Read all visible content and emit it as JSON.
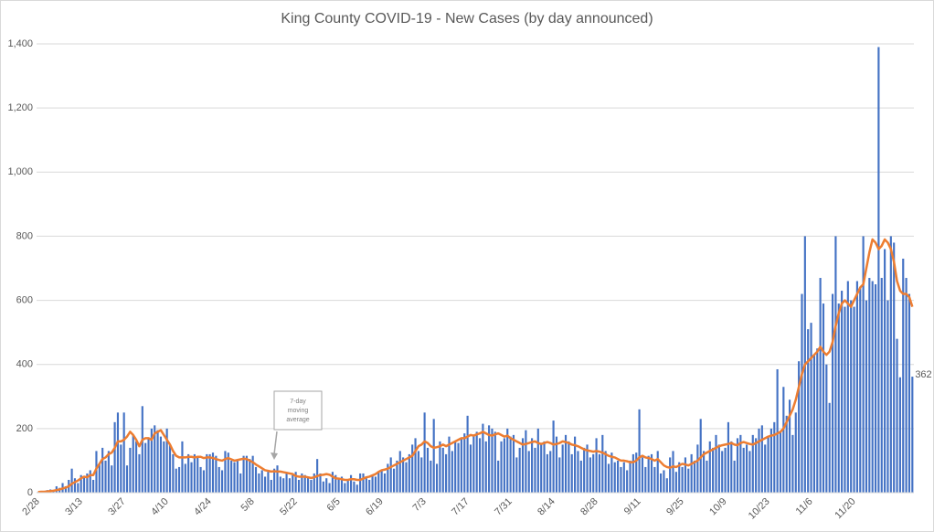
{
  "chart_data": {
    "type": "bar",
    "title": "King County COVID-19 - New Cases (by day announced)",
    "categories": [
      "2/28",
      null,
      null,
      null,
      null,
      null,
      null,
      null,
      null,
      null,
      null,
      null,
      null,
      null,
      "3/13",
      null,
      null,
      null,
      null,
      null,
      null,
      null,
      null,
      null,
      null,
      null,
      null,
      null,
      "3/27",
      null,
      null,
      null,
      null,
      null,
      null,
      null,
      null,
      null,
      null,
      null,
      null,
      null,
      "4/10",
      null,
      null,
      null,
      null,
      null,
      null,
      null,
      null,
      null,
      null,
      null,
      null,
      null,
      "4/24",
      null,
      null,
      null,
      null,
      null,
      null,
      null,
      null,
      null,
      null,
      null,
      null,
      null,
      "5/8",
      null,
      null,
      null,
      null,
      null,
      null,
      null,
      null,
      null,
      null,
      null,
      null,
      null,
      "5/22",
      null,
      null,
      null,
      null,
      null,
      null,
      null,
      null,
      null,
      null,
      null,
      null,
      null,
      "6/5",
      null,
      null,
      null,
      null,
      null,
      null,
      null,
      null,
      null,
      null,
      null,
      null,
      null,
      "6/19",
      null,
      null,
      null,
      null,
      null,
      null,
      null,
      null,
      null,
      null,
      null,
      null,
      null,
      "7/3",
      null,
      null,
      null,
      null,
      null,
      null,
      null,
      null,
      null,
      null,
      null,
      null,
      null,
      "7/17",
      null,
      null,
      null,
      null,
      null,
      null,
      null,
      null,
      null,
      null,
      null,
      null,
      null,
      "7/31",
      null,
      null,
      null,
      null,
      null,
      null,
      null,
      null,
      null,
      null,
      null,
      null,
      null,
      "8/14",
      null,
      null,
      null,
      null,
      null,
      null,
      null,
      null,
      null,
      null,
      null,
      null,
      null,
      "8/28",
      null,
      null,
      null,
      null,
      null,
      null,
      null,
      null,
      null,
      null,
      null,
      null,
      null,
      "9/11",
      null,
      null,
      null,
      null,
      null,
      null,
      null,
      null,
      null,
      null,
      null,
      null,
      null,
      "9/25",
      null,
      null,
      null,
      null,
      null,
      null,
      null,
      null,
      null,
      null,
      null,
      null,
      null,
      "10/9",
      null,
      null,
      null,
      null,
      null,
      null,
      null,
      null,
      null,
      null,
      null,
      null,
      null,
      "10/23",
      null,
      null,
      null,
      null,
      null,
      null,
      null,
      null,
      null,
      null,
      null,
      null,
      null,
      "11/6",
      null,
      null,
      null,
      null,
      null,
      null,
      null,
      null,
      null,
      null,
      null,
      null,
      null,
      "11/20",
      null,
      null,
      null,
      null,
      null,
      null,
      null,
      null,
      null,
      null,
      null,
      null,
      null,
      null,
      null,
      null,
      null,
      null,
      null
    ],
    "series": [
      {
        "color": "#4472c4",
        "values": [
          2,
          5,
          3,
          8,
          10,
          8,
          20,
          15,
          30,
          20,
          40,
          75,
          45,
          30,
          55,
          50,
          60,
          70,
          40,
          130,
          90,
          140,
          100,
          130,
          85,
          220,
          250,
          150,
          250,
          85,
          140,
          180,
          160,
          120,
          270,
          155,
          170,
          200,
          210,
          195,
          175,
          160,
          200,
          150,
          120,
          75,
          80,
          160,
          90,
          120,
          95,
          120,
          110,
          80,
          70,
          120,
          120,
          125,
          115,
          80,
          70,
          130,
          125,
          100,
          95,
          100,
          60,
          115,
          115,
          105,
          115,
          80,
          60,
          70,
          50,
          65,
          40,
          75,
          85,
          50,
          45,
          60,
          45,
          55,
          65,
          40,
          60,
          55,
          50,
          40,
          60,
          105,
          60,
          35,
          45,
          30,
          65,
          55,
          45,
          50,
          30,
          40,
          55,
          35,
          25,
          60,
          60,
          45,
          40,
          55,
          50,
          65,
          70,
          60,
          90,
          110,
          75,
          100,
          130,
          110,
          95,
          120,
          150,
          170,
          130,
          110,
          250,
          140,
          100,
          230,
          90,
          160,
          140,
          120,
          175,
          130,
          160,
          155,
          170,
          185,
          240,
          150,
          180,
          190,
          170,
          215,
          160,
          210,
          200,
          190,
          100,
          160,
          170,
          200,
          175,
          180,
          110,
          140,
          170,
          195,
          130,
          170,
          140,
          200,
          150,
          160,
          120,
          130,
          225,
          175,
          110,
          150,
          180,
          160,
          120,
          175,
          130,
          100,
          140,
          150,
          110,
          120,
          170,
          120,
          180,
          130,
          90,
          125,
          95,
          100,
          80,
          95,
          70,
          100,
          120,
          125,
          260,
          110,
          80,
          115,
          120,
          80,
          130,
          60,
          70,
          45,
          110,
          130,
          65,
          95,
          80,
          110,
          75,
          120,
          100,
          150,
          230,
          130,
          100,
          160,
          140,
          180,
          150,
          130,
          140,
          220,
          160,
          100,
          170,
          180,
          140,
          150,
          130,
          180,
          170,
          200,
          210,
          150,
          175,
          200,
          220,
          385,
          190,
          330,
          240,
          290,
          180,
          250,
          410,
          620,
          800,
          510,
          530,
          430,
          450,
          670,
          590,
          400,
          280,
          620,
          800,
          590,
          630,
          580,
          660,
          600,
          580,
          660,
          640,
          800,
          600,
          670,
          660,
          650,
          1390,
          670,
          760,
          600,
          800,
          780,
          480,
          360,
          730,
          670,
          620,
          362
        ]
      },
      {
        "type": "line",
        "color": "#ed7d31",
        "values": [
          2,
          3,
          3,
          4,
          5,
          6,
          8,
          10,
          13,
          16,
          20,
          28,
          33,
          38,
          45,
          50,
          48,
          55,
          55,
          75,
          90,
          105,
          110,
          120,
          125,
          140,
          160,
          160,
          165,
          175,
          190,
          180,
          165,
          145,
          165,
          170,
          170,
          165,
          185,
          190,
          195,
          180,
          165,
          150,
          130,
          115,
          110,
          110,
          110,
          112,
          112,
          110,
          112,
          112,
          108,
          110,
          110,
          108,
          105,
          102,
          100,
          105,
          108,
          104,
          100,
          102,
          104,
          106,
          105,
          100,
          95,
          88,
          82,
          76,
          70,
          68,
          66,
          67,
          66,
          66,
          64,
          62,
          60,
          58,
          52,
          50,
          50,
          50,
          48,
          46,
          48,
          52,
          55,
          56,
          58,
          56,
          50,
          45,
          44,
          42,
          40,
          40,
          42,
          42,
          40,
          40,
          44,
          48,
          50,
          54,
          58,
          65,
          70,
          72,
          75,
          80,
          85,
          90,
          95,
          100,
          105,
          110,
          115,
          130,
          145,
          150,
          160,
          155,
          145,
          140,
          142,
          145,
          150,
          145,
          150,
          155,
          160,
          165,
          170,
          170,
          175,
          180,
          178,
          182,
          185,
          190,
          185,
          180,
          178,
          182,
          185,
          180,
          175,
          178,
          170,
          165,
          160,
          155,
          150,
          152,
          155,
          158,
          160,
          155,
          152,
          155,
          158,
          155,
          150,
          152,
          155,
          160,
          158,
          155,
          150,
          148,
          145,
          140,
          135,
          132,
          130,
          128,
          130,
          128,
          125,
          120,
          115,
          112,
          110,
          105,
          100,
          100,
          98,
          95,
          95,
          100,
          110,
          115,
          110,
          108,
          105,
          100,
          105,
          95,
          85,
          80,
          78,
          82,
          80,
          85,
          90,
          88,
          85,
          90,
          95,
          100,
          110,
          120,
          125,
          130,
          135,
          140,
          145,
          148,
          150,
          152,
          155,
          150,
          148,
          155,
          158,
          155,
          152,
          150,
          155,
          160,
          165,
          170,
          175,
          178,
          180,
          185,
          190,
          200,
          220,
          240,
          260,
          290,
          330,
          370,
          400,
          410,
          420,
          430,
          440,
          455,
          440,
          430,
          440,
          470,
          520,
          560,
          590,
          600,
          590,
          580,
          600,
          620,
          640,
          650,
          700,
          750,
          790,
          780,
          760,
          770,
          790,
          780,
          760,
          720,
          660,
          630,
          620,
          620,
          610,
          580
        ]
      }
    ],
    "label_last": true,
    "annotation": {
      "lines": [
        "7-day",
        "moving",
        "average"
      ]
    },
    "ylim": [
      0,
      1400
    ],
    "yticks": [
      0,
      200,
      400,
      600,
      800,
      {
        "value": 1000,
        "label": "1,000"
      },
      {
        "value": 1200,
        "label": "1,200"
      },
      {
        "value": 1400,
        "label": "1,400"
      }
    ],
    "grid": true
  }
}
